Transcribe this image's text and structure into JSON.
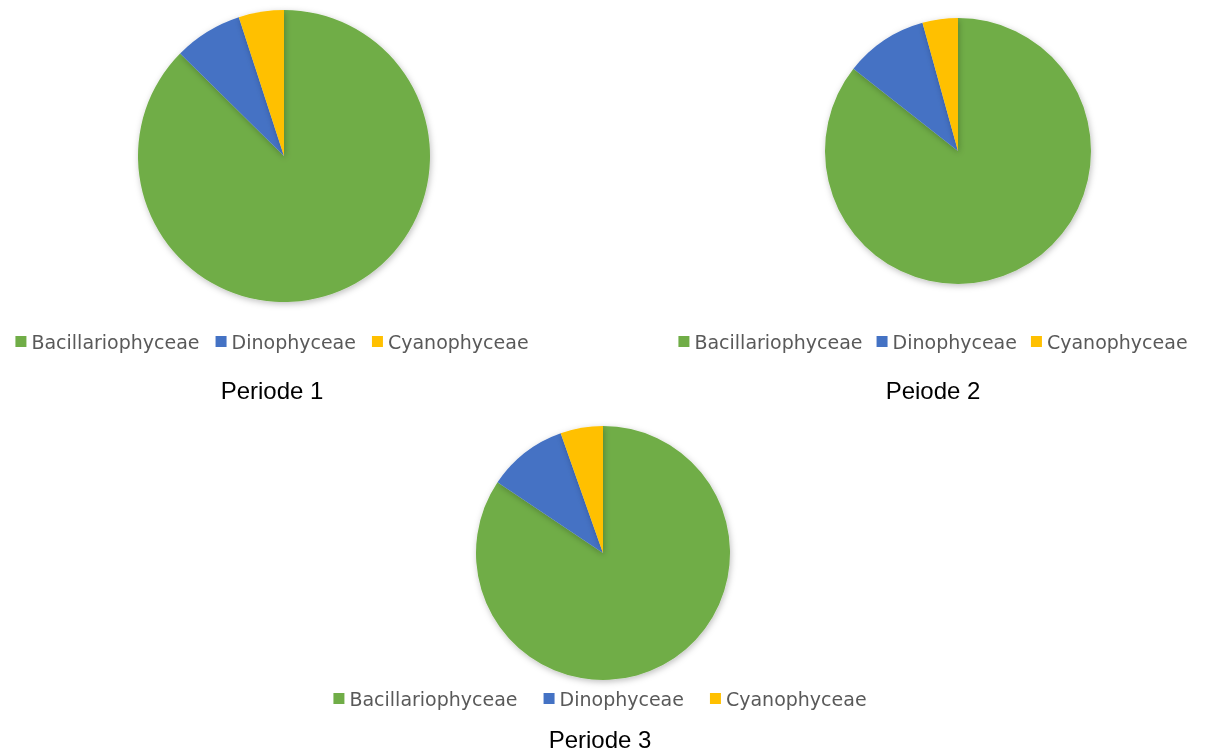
{
  "chart_data": [
    {
      "type": "pie",
      "title": "Periode 1",
      "categories": [
        "Bacillariophyceae",
        "Dinophyceae",
        "Cyanophyceae"
      ],
      "values": [
        87.4,
        7.6,
        5.0
      ],
      "colors": [
        "#70ad47",
        "#4472c4",
        "#ffc000"
      ],
      "legend": "bottom"
    },
    {
      "type": "pie",
      "title": "Peiode 2",
      "categories": [
        "Bacillariophyceae",
        "Dinophyceae",
        "Cyanophyceae"
      ],
      "values": [
        85.6,
        10.1,
        4.3
      ],
      "colors": [
        "#70ad47",
        "#4472c4",
        "#ffc000"
      ],
      "legend": "bottom"
    },
    {
      "type": "pie",
      "title": "Periode 3",
      "categories": [
        "Bacillariophyceae",
        "Dinophyceae",
        "Cyanophyceae"
      ],
      "values": [
        84.4,
        10.2,
        5.4
      ],
      "colors": [
        "#70ad47",
        "#4472c4",
        "#ffc000"
      ],
      "legend": "bottom"
    }
  ]
}
